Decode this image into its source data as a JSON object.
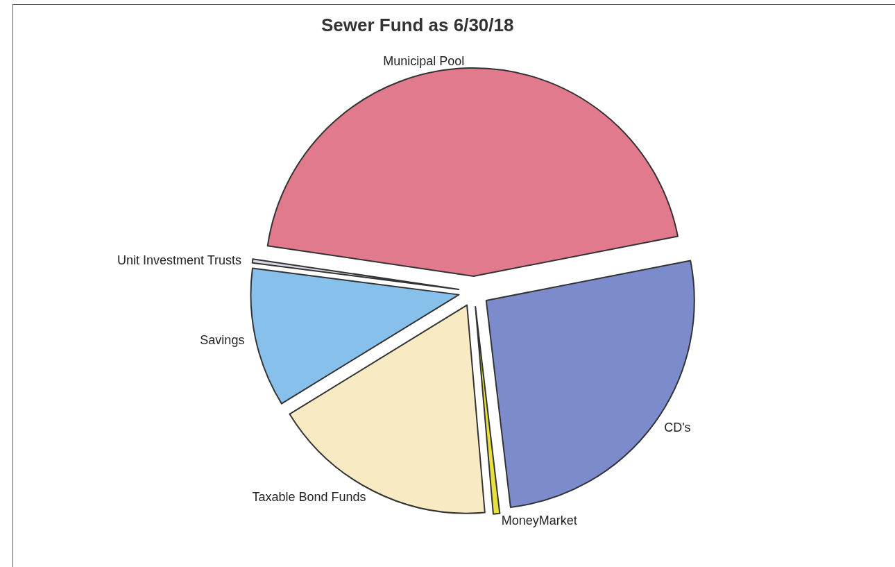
{
  "chart_data": {
    "type": "pie",
    "title": "Sewer Fund as 6/30/18",
    "categories": [
      "Municipal Pool",
      "CD's",
      "MoneyMarket",
      "Taxable Bond Funds",
      "Savings",
      "Unit Investment Trusts"
    ],
    "values": [
      44.6,
      26.2,
      0.5,
      17.6,
      10.8,
      0.3
    ],
    "colors": [
      "#e07a8c",
      "#7b8bcc",
      "#e8e040",
      "#f8ebc4",
      "#88c0ec",
      "#d8d8e4"
    ]
  }
}
